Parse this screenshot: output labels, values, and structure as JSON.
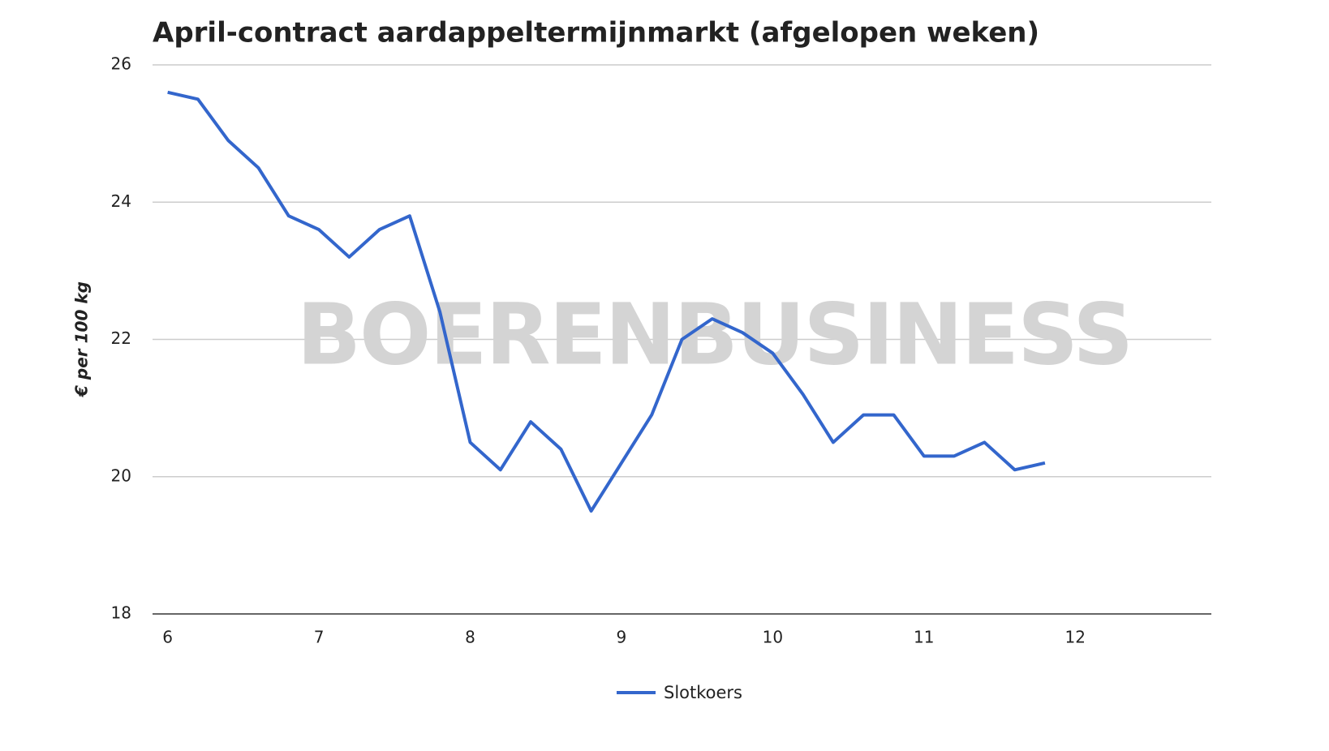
{
  "chart_data": {
    "type": "line",
    "title": "April-contract aardappeltermijnmarkt (afgelopen weken)",
    "ylabel": "€ per 100 kg",
    "watermark": "BOERENBUSINESS",
    "x": [
      6.0,
      6.2,
      6.4,
      6.6,
      6.8,
      7.0,
      7.2,
      7.4,
      7.6,
      7.8,
      8.0,
      8.2,
      8.4,
      8.6,
      8.8,
      9.0,
      9.2,
      9.4,
      9.6,
      9.8,
      10.0,
      10.2,
      10.4,
      10.6,
      10.8,
      11.0,
      11.2,
      11.4,
      11.6,
      11.8
    ],
    "series": [
      {
        "name": "Slotkoers",
        "color": "#3366cc",
        "values": [
          25.6,
          25.5,
          24.9,
          24.5,
          23.8,
          23.6,
          23.2,
          23.6,
          23.8,
          22.4,
          20.5,
          20.1,
          20.8,
          20.4,
          19.5,
          20.2,
          20.9,
          22.0,
          22.3,
          22.1,
          21.8,
          21.2,
          20.5,
          20.9,
          20.9,
          20.3,
          20.3,
          20.5,
          20.1,
          20.2
        ]
      }
    ],
    "xlim": [
      5.9,
      12.9
    ],
    "xticks": [
      6,
      7,
      8,
      9,
      10,
      11,
      12
    ],
    "ylim": [
      18,
      26
    ],
    "yticks": [
      18,
      20,
      22,
      24,
      26
    ],
    "grid": true,
    "legend": "bottom"
  }
}
